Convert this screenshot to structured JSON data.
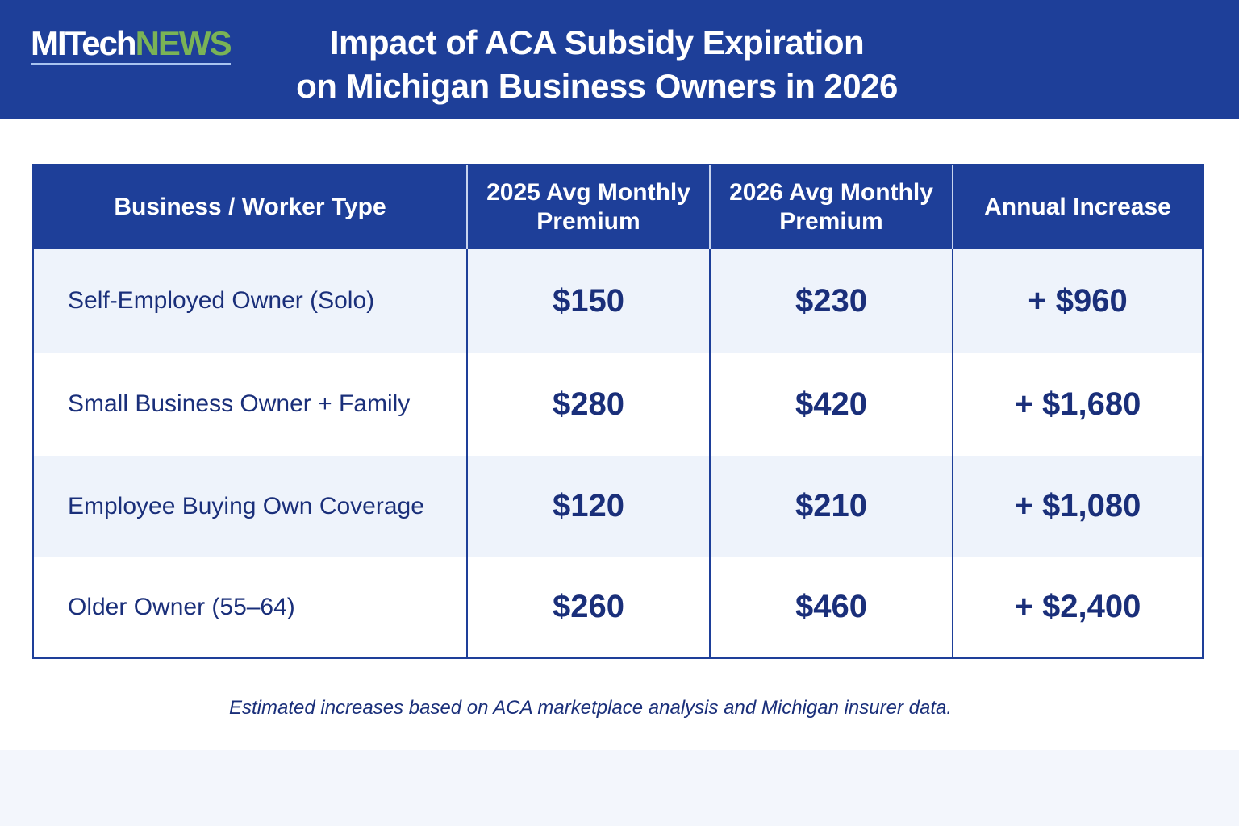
{
  "logo": {
    "part1": "MITech",
    "part2": "NEWS"
  },
  "title": {
    "line1": "Impact of ACA Subsidy Expiration",
    "line2": "on Michigan Business Owners in 2026"
  },
  "table": {
    "headers": [
      "Business / Worker Type",
      "2025 Avg Monthly Premium",
      "2026 Avg Monthly Premium",
      "Annual Increase"
    ],
    "rows": [
      [
        "Self-Employed Owner (Solo)",
        "$150",
        "$230",
        "+ $960"
      ],
      [
        "Small Business Owner + Family",
        "$280",
        "$420",
        "+ $1,680"
      ],
      [
        "Employee Buying Own Coverage",
        "$120",
        "$210",
        "+ $1,080"
      ],
      [
        "Older Owner (55–64)",
        "$260",
        "$460",
        "+ $2,400"
      ]
    ]
  },
  "footnote": "Estimated increases based on ACA marketplace analysis and Michigan insurer data.",
  "colors": {
    "header": "#1e3f99",
    "text": "#1a2f7a",
    "logo_accent": "#7ab356"
  }
}
